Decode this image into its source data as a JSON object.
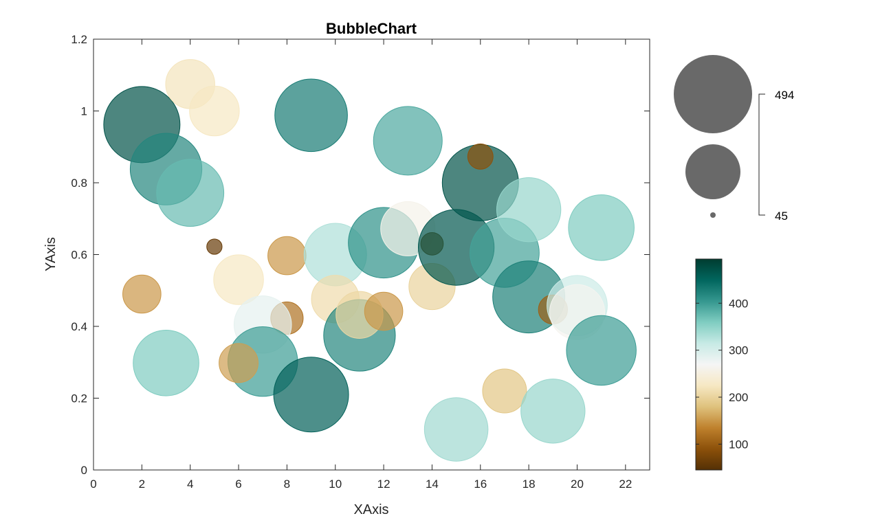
{
  "chart_data": {
    "type": "scatter",
    "subtype": "bubble",
    "title": "BubbleChart",
    "xlabel": "XAxis",
    "ylabel": "YAxis",
    "xlim": [
      0,
      23
    ],
    "ylim": [
      0,
      1.2
    ],
    "xticks": [
      0,
      2,
      4,
      6,
      8,
      10,
      12,
      14,
      16,
      18,
      20,
      22
    ],
    "yticks": [
      0,
      0.2,
      0.4,
      0.6,
      0.8,
      1,
      1.2
    ],
    "ytick_labels": [
      "0",
      "0.2",
      "0.4",
      "0.6",
      "0.8",
      "1",
      "1.2"
    ],
    "grid": false,
    "size_legend": {
      "max_label": "494",
      "min_label": "45",
      "max": 494,
      "min": 45
    },
    "colorbar": {
      "ticks": [
        100,
        200,
        300,
        400
      ],
      "range": [
        45,
        494
      ],
      "colors": [
        "#543005",
        "#8c510a",
        "#bf812d",
        "#dfc27d",
        "#f6e8c3",
        "#f5f5f5",
        "#c7eae5",
        "#80cdc1",
        "#35978f",
        "#01665e",
        "#003c30"
      ]
    },
    "points": [
      {
        "x": 2,
        "y": 0.962,
        "value": 470
      },
      {
        "x": 3,
        "y": 0.838,
        "value": 420
      },
      {
        "x": 4,
        "y": 0.772,
        "value": 375
      },
      {
        "x": 4,
        "y": 1.075,
        "value": 220
      },
      {
        "x": 5,
        "y": 1.0,
        "value": 225
      },
      {
        "x": 9,
        "y": 0.988,
        "value": 430
      },
      {
        "x": 13,
        "y": 0.917,
        "value": 390
      },
      {
        "x": 16,
        "y": 0.8,
        "value": 470
      },
      {
        "x": 16,
        "y": 0.873,
        "value": 90
      },
      {
        "x": 5,
        "y": 0.622,
        "value": 60
      },
      {
        "x": 2,
        "y": 0.49,
        "value": 150
      },
      {
        "x": 6,
        "y": 0.53,
        "value": 225
      },
      {
        "x": 8,
        "y": 0.597,
        "value": 150
      },
      {
        "x": 8,
        "y": 0.423,
        "value": 120
      },
      {
        "x": 7,
        "y": 0.405,
        "value": 285
      },
      {
        "x": 3,
        "y": 0.298,
        "value": 360
      },
      {
        "x": 7,
        "y": 0.302,
        "value": 400
      },
      {
        "x": 6,
        "y": 0.298,
        "value": 155
      },
      {
        "x": 9,
        "y": 0.21,
        "value": 455
      },
      {
        "x": 10,
        "y": 0.6,
        "value": 330
      },
      {
        "x": 10,
        "y": 0.476,
        "value": 210
      },
      {
        "x": 11,
        "y": 0.375,
        "value": 420
      },
      {
        "x": 11,
        "y": 0.432,
        "value": 205
      },
      {
        "x": 12,
        "y": 0.633,
        "value": 410
      },
      {
        "x": 12,
        "y": 0.442,
        "value": 150
      },
      {
        "x": 13,
        "y": 0.672,
        "value": 260
      },
      {
        "x": 14,
        "y": 0.63,
        "value": 80
      },
      {
        "x": 14,
        "y": 0.511,
        "value": 200
      },
      {
        "x": 15,
        "y": 0.62,
        "value": 465
      },
      {
        "x": 15,
        "y": 0.113,
        "value": 340
      },
      {
        "x": 17,
        "y": 0.605,
        "value": 395
      },
      {
        "x": 17,
        "y": 0.22,
        "value": 185
      },
      {
        "x": 18,
        "y": 0.725,
        "value": 345
      },
      {
        "x": 18,
        "y": 0.482,
        "value": 425
      },
      {
        "x": 19,
        "y": 0.447,
        "value": 105
      },
      {
        "x": 19,
        "y": 0.164,
        "value": 345
      },
      {
        "x": 20,
        "y": 0.458,
        "value": 310
      },
      {
        "x": 20,
        "y": 0.44,
        "value": 265
      },
      {
        "x": 21,
        "y": 0.675,
        "value": 360
      },
      {
        "x": 21,
        "y": 0.333,
        "value": 400
      }
    ]
  }
}
